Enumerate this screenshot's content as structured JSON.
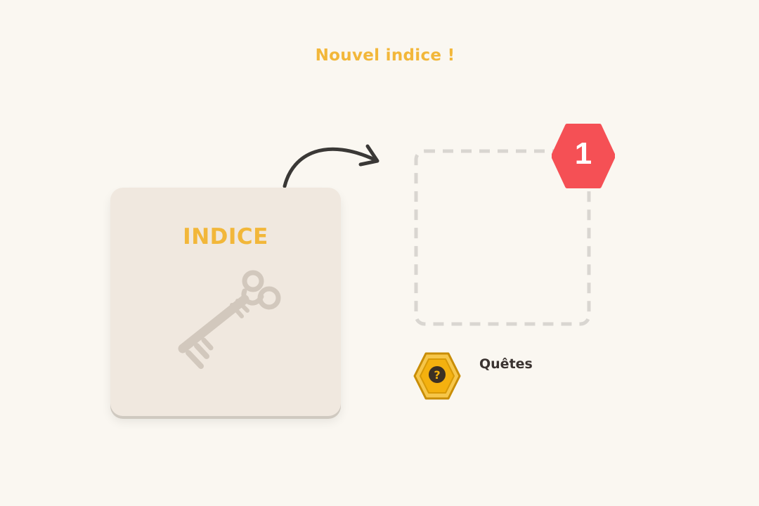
{
  "title": "Nouvel indice !",
  "card": {
    "label": "INDICE",
    "icon": "key-icon"
  },
  "slot": {
    "badge_count": "1"
  },
  "quests": {
    "label": "Quêtes",
    "icon": "quest-question-icon"
  },
  "colors": {
    "background": "#faf7f1",
    "accent": "#f2b73a",
    "card_bg": "#f0e8df",
    "key": "#d2c8bd",
    "badge": "#f55055",
    "dashed_border": "#d9d6d1",
    "arrow": "#3a3836",
    "quest_gold": "#f4b10f"
  }
}
